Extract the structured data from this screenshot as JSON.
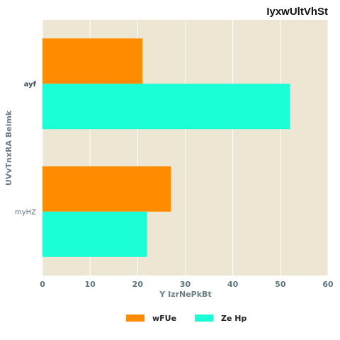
{
  "chart_data": {
    "type": "bar",
    "orientation": "horizontal",
    "title": "IyxwUltVhSt",
    "xlabel": "Y IzrNePkBt",
    "ylabel": "UVvTnxRA Beimk",
    "categories": [
      "ayf",
      "myHZ"
    ],
    "series": [
      {
        "name": "wFUe",
        "values": [
          21,
          27
        ],
        "color": "#ff8c00"
      },
      {
        "name": "Ze Hp",
        "values": [
          52,
          22
        ],
        "color": "#1affd5"
      }
    ],
    "xlim": [
      0,
      60
    ],
    "xticks": [
      "0",
      "10",
      "20",
      "30",
      "40",
      "50",
      "60"
    ],
    "grid": true,
    "legend_position": "bottom-center",
    "plot_background": "#ede6d3"
  }
}
